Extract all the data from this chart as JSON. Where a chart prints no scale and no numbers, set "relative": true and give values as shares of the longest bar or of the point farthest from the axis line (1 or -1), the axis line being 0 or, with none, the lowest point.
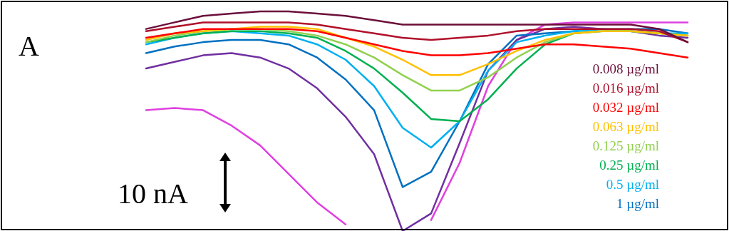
{
  "chart_data": {
    "type": "line",
    "relative": true,
    "marker": "none",
    "line_style": "solid",
    "legend": "right",
    "annotations": [
      "A",
      "10 nA"
    ],
    "categories": [
      null,
      null,
      null,
      null,
      null,
      null,
      null,
      null,
      null,
      null,
      null,
      null,
      null,
      null,
      null,
      null,
      null,
      null,
      null,
      null
    ],
    "series": [
      {
        "name": "0.008 µg/ml",
        "color": "#6b0f3a",
        "values": [
          0.92,
          0.95,
          0.98,
          0.99,
          1,
          1,
          0.99,
          0.98,
          0.96,
          0.94,
          0.94,
          0.94,
          0.94,
          0.94,
          0.94,
          0.94,
          0.94,
          0.94,
          0.92,
          0.86
        ]
      },
      {
        "name": "0.016 µg/ml",
        "color": "#b0102a",
        "values": [
          0.91,
          0.93,
          0.95,
          0.95,
          0.95,
          0.95,
          0.94,
          0.92,
          0.9,
          0.88,
          0.87,
          0.88,
          0.89,
          0.91,
          0.92,
          0.92,
          0.92,
          0.92,
          0.91,
          0.86
        ]
      },
      {
        "name": "0.032 µg/ml",
        "color": "#ff0000",
        "values": [
          0.88,
          0.9,
          0.92,
          0.92,
          0.92,
          0.92,
          0.91,
          0.88,
          0.85,
          0.82,
          0.8,
          0.8,
          0.81,
          0.83,
          0.85,
          0.85,
          0.84,
          0.83,
          0.81,
          0.79
        ]
      },
      {
        "name": "0.063 µg/ml",
        "color": "#ffc000",
        "values": [
          0.87,
          0.9,
          0.91,
          0.92,
          0.93,
          0.93,
          0.92,
          0.88,
          0.84,
          0.78,
          0.71,
          0.71,
          0.76,
          0.82,
          0.87,
          0.9,
          0.91,
          0.91,
          0.9,
          0.89
        ]
      },
      {
        "name": "0.125 µg/ml",
        "color": "#92d050",
        "values": [
          0.86,
          0.89,
          0.91,
          0.92,
          0.92,
          0.91,
          0.89,
          0.85,
          0.79,
          0.71,
          0.64,
          0.64,
          0.7,
          0.79,
          0.86,
          0.9,
          0.91,
          0.91,
          0.9,
          0.89
        ]
      },
      {
        "name": "0.25 µg/ml",
        "color": "#00b050",
        "values": [
          0.86,
          0.88,
          0.9,
          0.91,
          0.91,
          0.9,
          0.88,
          0.82,
          0.74,
          0.63,
          0.51,
          0.5,
          0.6,
          0.74,
          0.85,
          0.9,
          0.91,
          0.91,
          0.9,
          0.89
        ]
      },
      {
        "name": "0.5 µg/ml",
        "color": "#00b0f0",
        "values": [
          0.85,
          0.88,
          0.9,
          0.91,
          0.9,
          0.89,
          0.85,
          0.78,
          0.66,
          0.47,
          0.38,
          0.5,
          0.73,
          0.86,
          0.89,
          0.91,
          0.92,
          0.91,
          0.9,
          0.9
        ]
      },
      {
        "name": "1 µg/ml",
        "color": "#0070c0",
        "values": [
          0.81,
          0.84,
          0.86,
          0.87,
          0.87,
          0.85,
          0.79,
          0.69,
          0.55,
          0.2,
          0.27,
          0.5,
          0.76,
          0.89,
          0.9,
          0.91,
          0.92,
          0.92,
          0.92,
          0.9
        ]
      },
      {
        "color": "#7030a0",
        "values": [
          0.74,
          0.77,
          0.8,
          0.81,
          0.79,
          0.74,
          0.65,
          0.52,
          0.35,
          0,
          0.08,
          0.4,
          0.73,
          0.87,
          0.92,
          0.93,
          0.92,
          0.91,
          0.89,
          0.88
        ]
      },
      {
        "color": "#e040e0",
        "values": [
          0.55,
          0.56,
          0.55,
          0.48,
          0.39,
          0.26,
          0.13,
          0.03,
          null,
          null,
          0.05,
          0.31,
          0.66,
          0.87,
          0.94,
          0.95,
          0.95,
          0.95,
          0.95,
          0.95
        ]
      }
    ]
  }
}
